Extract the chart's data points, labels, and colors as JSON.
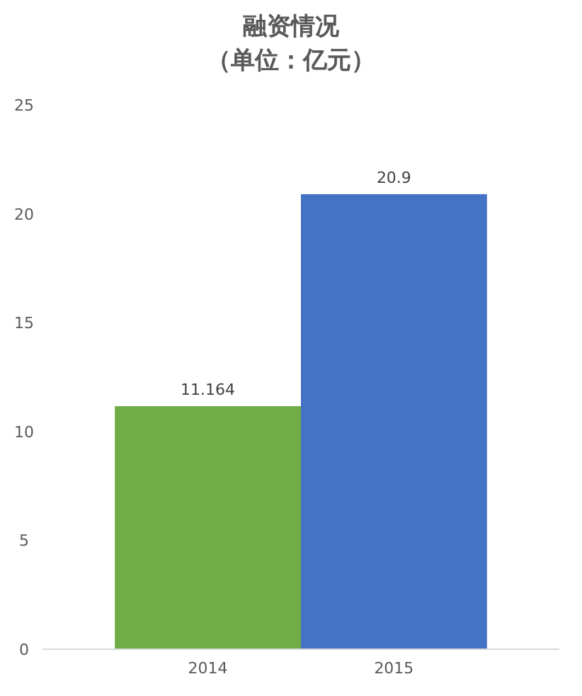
{
  "chart_data": {
    "type": "bar",
    "title": "融资情况",
    "subtitle": "（单位：亿元）",
    "categories": [
      "2014",
      "2015"
    ],
    "values": [
      11.164,
      20.9
    ],
    "colors": [
      "#70ad47",
      "#4472c4"
    ],
    "ylim": [
      0,
      25
    ],
    "yticks": [
      0,
      5,
      10,
      15,
      20,
      25
    ],
    "data_labels": true,
    "grid": false
  }
}
